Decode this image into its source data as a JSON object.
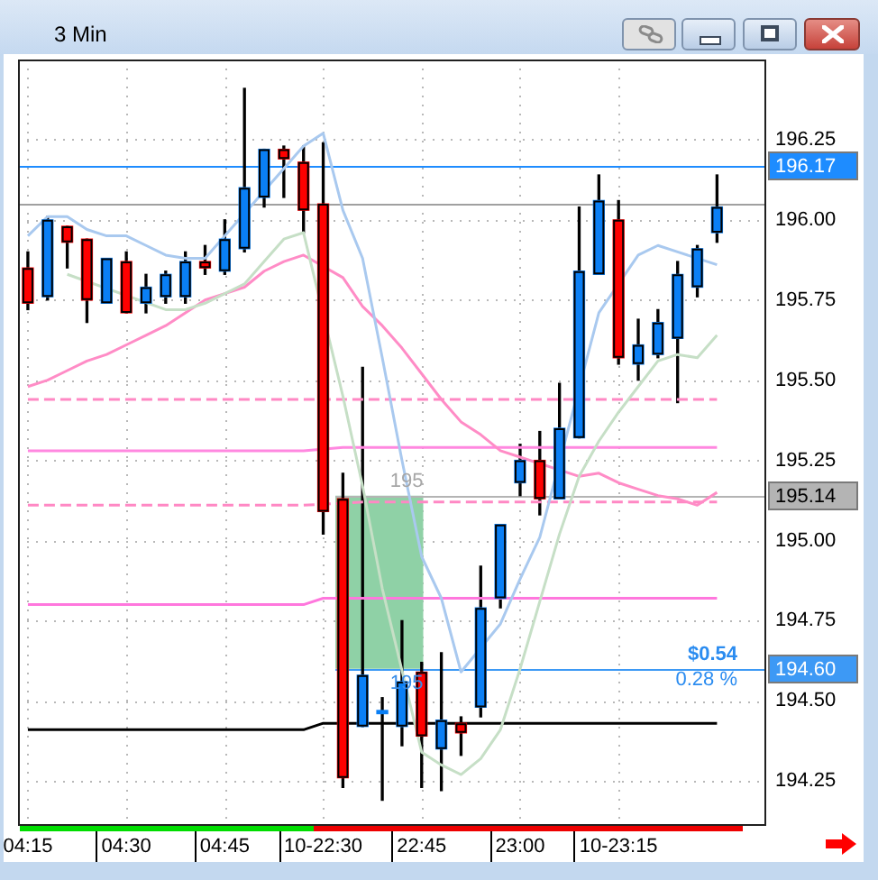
{
  "chart_data": {
    "type": "candlestick",
    "title": "3 Min",
    "categories": [
      "04:15",
      null,
      null,
      null,
      null,
      "04:30",
      null,
      null,
      null,
      null,
      "04:45",
      null,
      null,
      null,
      null,
      "10-22:30",
      null,
      null,
      null,
      null,
      "22:45",
      null,
      null,
      null,
      null,
      "23:00",
      null,
      null,
      null,
      null,
      "10-23:15",
      null,
      null,
      null,
      null,
      null,
      null,
      null
    ],
    "ohlc": [
      [
        195.85,
        195.9,
        195.72,
        195.74
      ],
      [
        195.76,
        196.01,
        195.75,
        196.0
      ],
      [
        195.98,
        195.98,
        195.85,
        195.93
      ],
      [
        195.94,
        195.94,
        195.68,
        195.75
      ],
      [
        195.74,
        195.88,
        195.74,
        195.88
      ],
      [
        195.87,
        195.9,
        195.71,
        195.71
      ],
      [
        195.74,
        195.83,
        195.71,
        195.79
      ],
      [
        195.76,
        195.84,
        195.74,
        195.83
      ],
      [
        195.76,
        195.9,
        195.74,
        195.87
      ],
      [
        195.87,
        195.92,
        195.83,
        195.85
      ],
      [
        195.84,
        196.0,
        195.83,
        195.94
      ],
      [
        195.91,
        196.41,
        195.9,
        196.1
      ],
      [
        196.07,
        196.22,
        196.04,
        196.22
      ],
      [
        196.22,
        196.23,
        196.07,
        196.19
      ],
      [
        196.18,
        196.23,
        195.96,
        196.03
      ],
      [
        196.05,
        196.24,
        195.02,
        195.09
      ],
      [
        195.13,
        195.21,
        194.23,
        194.26
      ],
      [
        194.42,
        195.54,
        194.42,
        194.58
      ],
      [
        194.46,
        194.51,
        194.19,
        194.47
      ],
      [
        194.42,
        194.75,
        194.36,
        194.56
      ],
      [
        194.59,
        194.62,
        194.23,
        194.39
      ],
      [
        194.35,
        194.65,
        194.22,
        194.44
      ],
      [
        194.43,
        194.45,
        194.33,
        194.4
      ],
      [
        194.48,
        194.92,
        194.45,
        194.79
      ],
      [
        194.82,
        195.05,
        194.79,
        195.05
      ],
      [
        195.18,
        195.3,
        195.14,
        195.25
      ],
      [
        195.25,
        195.34,
        195.08,
        195.13
      ],
      [
        195.13,
        195.49,
        195.13,
        195.35
      ],
      [
        195.32,
        196.04,
        195.32,
        195.84
      ],
      [
        195.83,
        196.14,
        195.83,
        196.06
      ],
      [
        196.0,
        196.06,
        195.55,
        195.57
      ],
      [
        195.55,
        195.69,
        195.5,
        195.61
      ],
      [
        195.58,
        195.72,
        195.57,
        195.68
      ],
      [
        195.63,
        195.87,
        195.43,
        195.83
      ],
      [
        195.79,
        195.92,
        195.76,
        195.91
      ],
      [
        195.96,
        196.14,
        195.93,
        196.04
      ],
      null,
      null
    ],
    "colors": [
      "#ff0000",
      "#0a7ff5",
      "#ff0000",
      "#ff0000",
      "#0a7ff5",
      "#ff0000",
      "#0a7ff5",
      "#0a7ff5",
      "#0a7ff5",
      "#ff0000",
      "#0a7ff5",
      "#0a7ff5",
      "#0a7ff5",
      "#ff0000",
      "#ff0000",
      "#ff0000",
      "#ff0000",
      "#0a7ff5",
      "#0a7ff5",
      "#0a7ff5",
      "#ff0000",
      "#0a7ff5",
      "#ff0000",
      "#0a7ff5",
      "#0a7ff5",
      "#0a7ff5",
      "#ff0000",
      "#0a7ff5",
      "#0a7ff5",
      "#0a7ff5",
      "#ff0000",
      "#0a7ff5",
      "#0a7ff5",
      "#0a7ff5",
      "#0a7ff5",
      "#0a7ff5",
      null,
      null
    ],
    "series": [
      {
        "type": "line",
        "color": "#a9c9ef",
        "values": [
          195.95,
          196.01,
          196.01,
          195.97,
          195.95,
          195.95,
          195.92,
          195.89,
          195.88,
          195.88,
          null,
          null,
          null,
          196.16,
          196.23,
          196.27,
          196.03,
          195.88,
          195.57,
          195.25,
          194.95,
          194.82,
          194.59,
          null,
          194.74,
          194.88,
          195.01,
          null,
          null,
          195.71,
          null,
          195.89,
          195.92,
          195.9,
          null,
          195.86,
          null,
          null
        ]
      },
      {
        "type": "line",
        "color": "#c6dfc6",
        "values": [
          null,
          null,
          195.83,
          null,
          null,
          null,
          null,
          195.72,
          195.72,
          195.74,
          195.77,
          195.8,
          195.87,
          195.94,
          195.96,
          null,
          195.45,
          195.17,
          194.85,
          null,
          194.34,
          194.3,
          194.27,
          194.32,
          194.41,
          194.6,
          194.81,
          195.02,
          195.2,
          195.31,
          195.4,
          195.48,
          195.56,
          195.58,
          195.57,
          195.64,
          null,
          null
        ]
      },
      {
        "type": "line",
        "color": "#ff8cc6",
        "values": [
          195.48,
          195.5,
          195.53,
          195.56,
          195.58,
          195.61,
          195.64,
          195.67,
          195.71,
          195.75,
          195.77,
          195.79,
          195.84,
          195.87,
          195.89,
          null,
          195.82,
          195.73,
          195.67,
          195.6,
          195.52,
          195.44,
          195.37,
          195.33,
          195.28,
          195.26,
          null,
          null,
          195.2,
          195.21,
          195.18,
          195.16,
          195.14,
          195.13,
          195.11,
          195.15,
          null,
          null
        ]
      },
      {
        "type": "line",
        "color": "#000000",
        "values": [
          194.41,
          194.41,
          194.41,
          194.41,
          194.41,
          194.41,
          194.41,
          194.41,
          194.41,
          194.41,
          194.41,
          194.41,
          194.41,
          194.41,
          194.41,
          194.43,
          null,
          null,
          194.43,
          null,
          null,
          null,
          null,
          194.43,
          194.43,
          194.43,
          194.43,
          194.43,
          194.43,
          194.43,
          194.43,
          194.43,
          194.43,
          194.43,
          194.43,
          194.43,
          null,
          null
        ]
      },
      {
        "type": "line",
        "color": "#ff77dd",
        "values": [
          194.8,
          194.8,
          194.8,
          194.8,
          194.8,
          194.8,
          194.8,
          194.8,
          194.8,
          194.8,
          194.8,
          194.8,
          194.8,
          194.8,
          194.8,
          194.82,
          null,
          194.82,
          194.82,
          194.82,
          194.82,
          194.82,
          194.82,
          194.82,
          null,
          194.82,
          194.82,
          194.82,
          194.82,
          194.82,
          194.82,
          194.82,
          194.82,
          194.82,
          194.82,
          194.82,
          null,
          null
        ]
      },
      {
        "type": "line",
        "color": "#ff88e0",
        "values": [
          195.28,
          195.28,
          195.28,
          195.28,
          195.28,
          195.28,
          195.28,
          195.28,
          195.28,
          195.28,
          195.28,
          195.28,
          195.28,
          195.28,
          195.28,
          null,
          195.29,
          195.29,
          195.29,
          195.29,
          195.29,
          195.29,
          195.29,
          195.29,
          195.29,
          195.29,
          195.29,
          null,
          195.29,
          195.29,
          195.29,
          195.29,
          195.29,
          195.29,
          195.29,
          195.29,
          null,
          null
        ]
      },
      {
        "type": "line",
        "color": "#ff88c4",
        "line_style": "dashed",
        "values": [
          195.44,
          195.44,
          195.44,
          195.44,
          195.44,
          195.44,
          195.44,
          195.44,
          195.44,
          195.44,
          195.44,
          195.44,
          195.44,
          195.44,
          195.44,
          null,
          195.44,
          195.44,
          195.44,
          195.44,
          195.44,
          195.44,
          195.44,
          195.44,
          195.44,
          195.44,
          195.44,
          195.44,
          null,
          195.44,
          195.44,
          195.44,
          195.44,
          195.44,
          195.44,
          195.44,
          null,
          null
        ]
      },
      {
        "type": "line",
        "color": "#ff88c4",
        "line_style": "dashed",
        "values": [
          195.11,
          195.11,
          195.11,
          195.11,
          195.11,
          195.11,
          195.11,
          195.11,
          195.11,
          195.11,
          195.11,
          195.11,
          195.11,
          195.11,
          195.11,
          null,
          null,
          195.12,
          195.12,
          195.12,
          195.12,
          195.12,
          195.12,
          195.12,
          195.12,
          195.12,
          195.12,
          195.12,
          195.12,
          195.12,
          195.12,
          195.12,
          195.12,
          195.12,
          195.12,
          195.12,
          null,
          null
        ]
      }
    ],
    "ylim": [
      194.11,
      196.5
    ],
    "yticks": [
      194.25,
      {
        "value": 194.5,
        "label": "194.50"
      },
      194.75,
      {
        "value": 195,
        "label": "195.00"
      },
      195.25,
      {
        "value": 195.5,
        "label": "195.50"
      },
      195.75,
      {
        "value": 196,
        "label": "196.00"
      },
      196.25
    ],
    "grid": true,
    "bands": [
      {
        "axis": "y",
        "from": 194.6,
        "to": 195.14,
        "color": "#8fd1a6"
      }
    ],
    "ref_lines": [
      {
        "axis": "y",
        "value": 196.17,
        "label": "196.17",
        "color": "#1e8cff"
      },
      {
        "axis": "y",
        "value": 196.05,
        "color": "#a0a0a0"
      },
      {
        "axis": "y",
        "value": 195.14,
        "label": "195.14",
        "color": "#b4b4b4"
      },
      {
        "axis": "y",
        "value": 194.6,
        "label": "194.60",
        "color": "#3d99f5"
      }
    ],
    "annotations": [
      {
        "text": "195",
        "y": 195.14
      },
      {
        "text": "195",
        "y": 194.6
      },
      {
        "text": "$0.54",
        "y": 194.6
      },
      {
        "text": "0.28 %",
        "y": 194.6
      }
    ]
  }
}
